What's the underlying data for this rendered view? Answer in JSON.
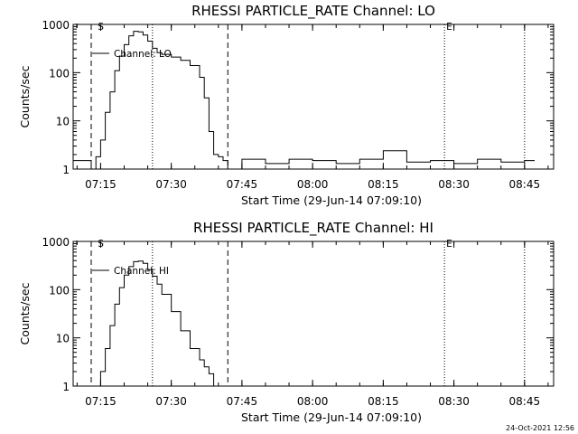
{
  "chart_data": [
    {
      "type": "line",
      "title": "RHESSI PARTICLE_RATE Channel: LO",
      "xlabel": "Start Time (29-Jun-14 07:09:10)",
      "ylabel": "Counts/sec",
      "y_scale": "log",
      "ylim": [
        1,
        1000
      ],
      "x_tick_labels": [
        "07:15",
        "07:30",
        "07:45",
        "08:00",
        "08:15",
        "08:30",
        "08:45"
      ],
      "y_tick_labels": [
        "1",
        "10",
        "100",
        "1000"
      ],
      "legend": "Channel: LO",
      "markers": [
        "S",
        "E"
      ],
      "series": [
        {
          "x": [
            "07:09",
            "07:12",
            "07:13",
            "07:14",
            "07:15",
            "07:16",
            "07:17",
            "07:18",
            "07:19",
            "07:20",
            "07:21",
            "07:22",
            "07:23",
            "07:24",
            "07:25",
            "07:26",
            "07:27",
            "07:28",
            "07:30",
            "07:32",
            "07:34",
            "07:36",
            "07:37",
            "07:38",
            "07:39",
            "07:40",
            "07:41",
            "07:42",
            "07:45",
            "07:50",
            "07:55",
            "08:00",
            "08:05",
            "08:10",
            "08:15",
            "08:20",
            "08:25",
            "08:30",
            "08:35",
            "08:40",
            "08:45"
          ],
          "values": [
            1.5,
            1.5,
            1.0,
            1.8,
            4,
            15,
            40,
            110,
            220,
            380,
            580,
            720,
            700,
            600,
            450,
            320,
            260,
            240,
            210,
            180,
            140,
            80,
            30,
            6,
            2,
            1.8,
            1.5,
            1.0,
            1.6,
            1.3,
            1.6,
            1.5,
            1.3,
            1.6,
            2.4,
            1.4,
            1.5,
            1.3,
            1.6,
            1.4,
            1.5
          ]
        }
      ]
    },
    {
      "type": "line",
      "title": "RHESSI PARTICLE_RATE Channel: HI",
      "xlabel": "Start Time (29-Jun-14 07:09:10)",
      "ylabel": "Counts/sec",
      "y_scale": "log",
      "ylim": [
        1,
        1000
      ],
      "x_tick_labels": [
        "07:15",
        "07:30",
        "07:45",
        "08:00",
        "08:15",
        "08:30",
        "08:45"
      ],
      "y_tick_labels": [
        "1",
        "10",
        "100",
        "1000"
      ],
      "legend": "Channel: HI",
      "markers": [
        "S",
        "E"
      ],
      "series": [
        {
          "x": [
            "07:14",
            "07:15",
            "07:16",
            "07:17",
            "07:18",
            "07:19",
            "07:20",
            "07:21",
            "07:22",
            "07:23",
            "07:24",
            "07:25",
            "07:26",
            "07:27",
            "07:28",
            "07:30",
            "07:32",
            "07:34",
            "07:36",
            "07:37",
            "07:38",
            "07:39"
          ],
          "values": [
            1.0,
            2,
            6,
            18,
            50,
            110,
            200,
            300,
            380,
            390,
            350,
            260,
            190,
            130,
            80,
            35,
            14,
            6,
            3.5,
            2.5,
            1.8,
            1.0
          ]
        }
      ]
    }
  ],
  "timestamp": "24-Oct-2021 12:56"
}
